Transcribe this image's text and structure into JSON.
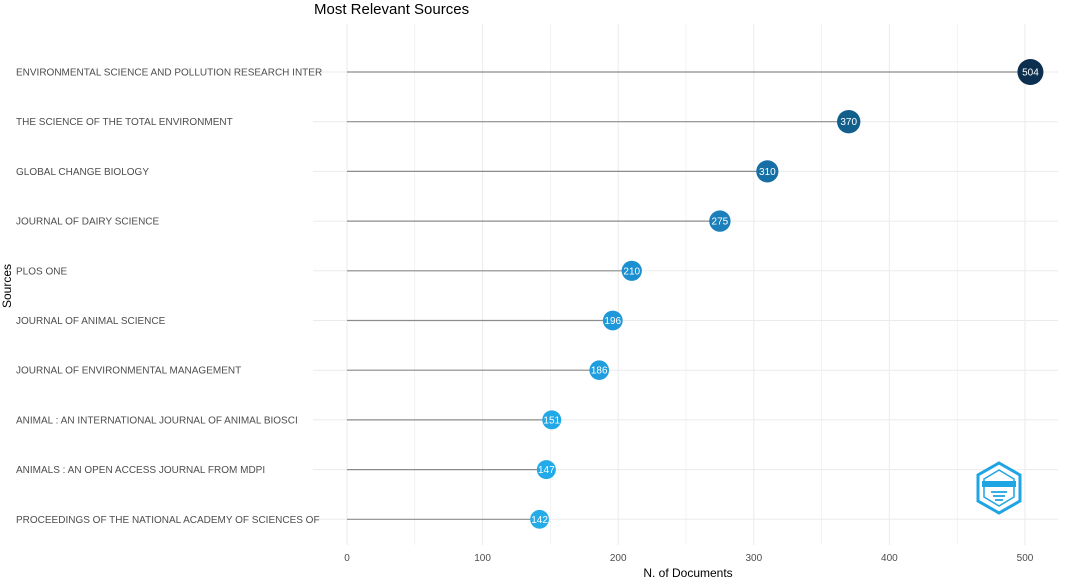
{
  "chart_data": {
    "type": "lollipop",
    "title": "Most Relevant Sources",
    "xlabel": "N. of Documents",
    "ylabel": "Sources",
    "xlim": [
      0,
      530
    ],
    "xticks": [
      0,
      100,
      200,
      300,
      400,
      500
    ],
    "grid": true,
    "categories": [
      "ENVIRONMENTAL SCIENCE AND POLLUTION RESEARCH INTER",
      "THE SCIENCE OF THE TOTAL ENVIRONMENT",
      "GLOBAL CHANGE BIOLOGY",
      "JOURNAL OF DAIRY SCIENCE",
      "PLOS ONE",
      "JOURNAL OF ANIMAL SCIENCE",
      "JOURNAL OF ENVIRONMENTAL MANAGEMENT",
      "ANIMAL : AN INTERNATIONAL JOURNAL OF ANIMAL BIOSCI",
      "ANIMALS : AN OPEN ACCESS JOURNAL FROM MDPI",
      "PROCEEDINGS OF THE NATIONAL ACADEMY OF SCIENCES OF"
    ],
    "values": [
      504,
      370,
      310,
      275,
      210,
      196,
      186,
      151,
      147,
      142
    ],
    "data_labels": [
      "504",
      "370",
      "310",
      "275",
      "210",
      "196",
      "186",
      "151",
      "147",
      "142"
    ],
    "colors": [
      "#0d2f4f",
      "#135f8c",
      "#1670a6",
      "#1a7fbb",
      "#1c8fd0",
      "#1e98d8",
      "#1f9edd",
      "#22a8e6",
      "#23aae8",
      "#24ace9"
    ],
    "line_color": "#8c8c8c",
    "grid_color": "#ebebeb"
  },
  "watermark": {
    "name": "bibliometrix-logo-icon",
    "color": "#1fa4e4"
  }
}
